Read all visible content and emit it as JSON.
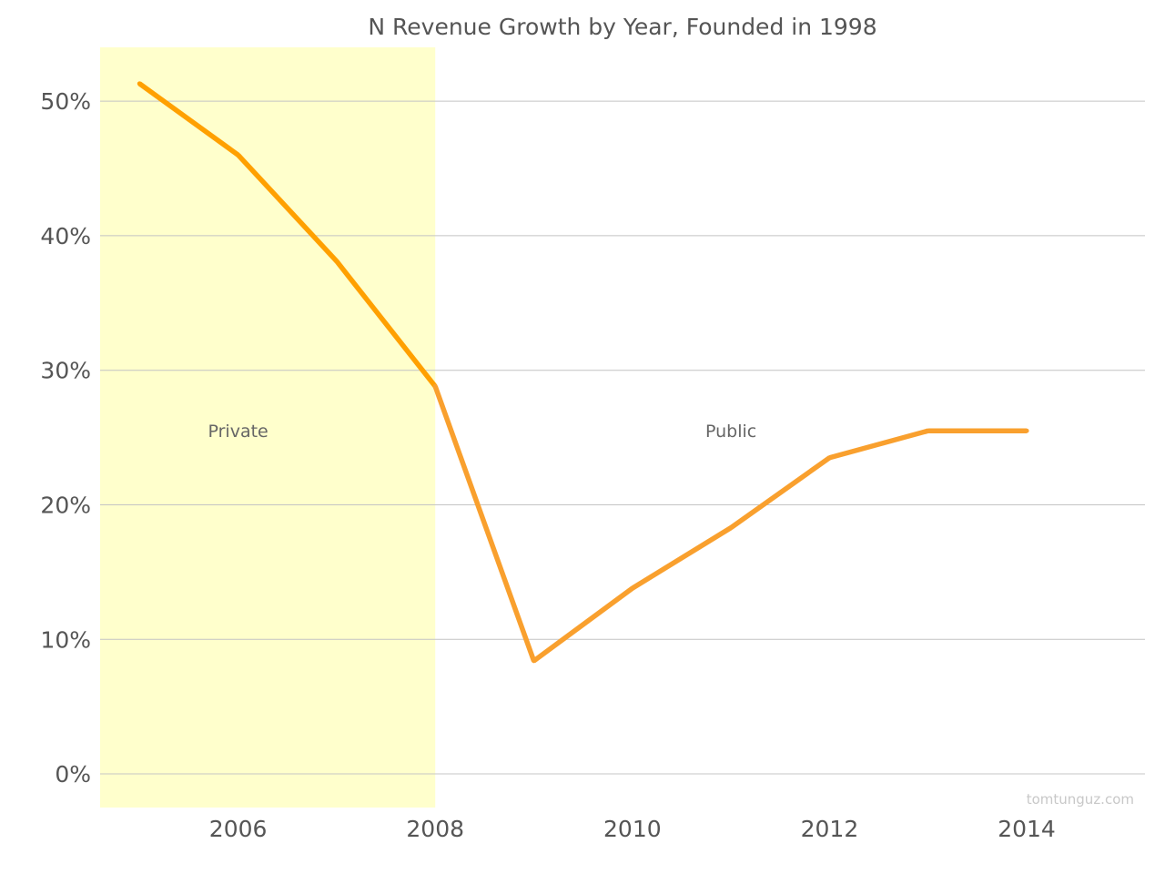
{
  "chart_data": {
    "type": "line",
    "title": "N Revenue Growth by Year, Founded in 1998",
    "xlabel": "",
    "ylabel": "",
    "x": [
      2005,
      2006,
      2007,
      2008,
      2009,
      2010,
      2011,
      2012,
      2013,
      2014
    ],
    "series": [
      {
        "values": [
          51.3,
          46.0,
          38.1,
          28.8,
          8.4,
          13.8,
          18.3,
          23.5,
          25.5,
          25.5
        ]
      }
    ],
    "xlim": [
      2004.6,
      2015.2
    ],
    "ylim": [
      -2.5,
      54
    ],
    "x_ticks": [
      2006,
      2008,
      2010,
      2012,
      2014
    ],
    "x_tick_labels": [
      "2006",
      "2008",
      "2010",
      "2012",
      "2014"
    ],
    "y_ticks": [
      0,
      10,
      20,
      30,
      40,
      50
    ],
    "y_tick_labels": [
      "0%",
      "10%",
      "20%",
      "30%",
      "40%",
      "50%"
    ],
    "grid": "horizontal",
    "shaded_regions": [
      {
        "label": "Private",
        "x_start": 2004.6,
        "x_end": 2008,
        "color": "#ffffcc"
      }
    ],
    "annotations": [
      {
        "text": "Private",
        "x": 2006,
        "y": 25.5
      },
      {
        "text": "Public",
        "x": 2011,
        "y": 25.5
      }
    ],
    "watermark": "tomtunguz.com",
    "colors": {
      "line_early": "#ffa000",
      "line_late": "#f9a02e",
      "shade": "#ffffcc",
      "grid": "#c4c4c4",
      "text": "#555555"
    }
  }
}
